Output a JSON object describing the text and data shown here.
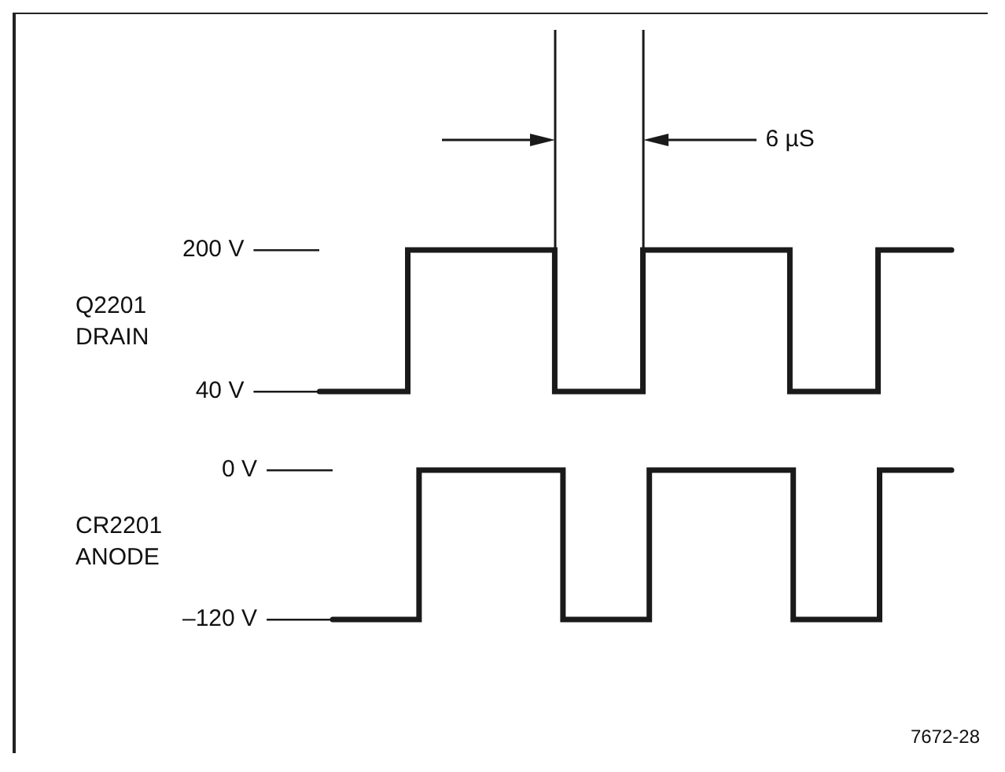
{
  "chart_data": [
    {
      "type": "step",
      "ylabel": "Q2201 DRAIN",
      "categories": [
        null,
        null,
        null,
        null,
        null,
        null,
        null,
        null,
        null,
        null,
        null,
        null,
        null,
        null,
        null,
        null,
        null,
        null,
        null,
        null,
        null,
        null,
        null,
        null,
        null,
        null,
        null,
        null,
        null,
        null,
        null,
        null,
        null,
        null,
        null,
        null,
        null,
        null,
        null,
        null,
        null,
        null,
        null,
        null
      ],
      "series": [
        {
          "color": "#1a1a1a",
          "values": [
            40,
            40,
            40,
            40,
            40,
            40,
            200,
            200,
            200,
            200,
            200,
            200,
            200,
            200,
            200,
            200,
            40,
            40,
            40,
            40,
            40,
            40,
            200,
            200,
            200,
            200,
            200,
            200,
            200,
            200,
            200,
            200,
            40,
            40,
            40,
            40,
            40,
            40,
            200,
            200,
            200,
            200,
            200,
            200
          ]
        }
      ],
      "ylim": [
        40,
        200
      ],
      "yticks": [
        {
          "value": 40,
          "label": "40 V"
        },
        {
          "value": 200,
          "label": "200 V"
        }
      ],
      "tick_labels": "y",
      "annotations": [
        "6 µS"
      ]
    },
    {
      "type": "step",
      "ylabel": "CR2201 ANODE",
      "categories": [
        null,
        null,
        null,
        null,
        null,
        null,
        null,
        null,
        null,
        null,
        null,
        null,
        null,
        null,
        null,
        null,
        null,
        null,
        null,
        null,
        null,
        null,
        null,
        null,
        null,
        null,
        null,
        null,
        null,
        null,
        null,
        null,
        null,
        null,
        null,
        null,
        null,
        null,
        null,
        null,
        null,
        null,
        null,
        null
      ],
      "series": [
        {
          "color": "#1a1a1a",
          "values": [
            -120,
            -120,
            -120,
            -120,
            -120,
            -120,
            0,
            0,
            0,
            0,
            0,
            0,
            0,
            0,
            0,
            0,
            -120,
            -120,
            -120,
            -120,
            -120,
            -120,
            0,
            0,
            0,
            0,
            0,
            0,
            0,
            0,
            0,
            0,
            -120,
            -120,
            -120,
            -120,
            -120,
            -120,
            0,
            0,
            0,
            0,
            0,
            0
          ]
        }
      ],
      "ylim": [
        -120,
        0
      ],
      "yticks": [
        {
          "value": -120,
          "label": "–120 V"
        },
        {
          "value": 0,
          "label": "0 V"
        }
      ],
      "tick_labels": "y",
      "annotations": [
        "7672-28"
      ]
    }
  ]
}
